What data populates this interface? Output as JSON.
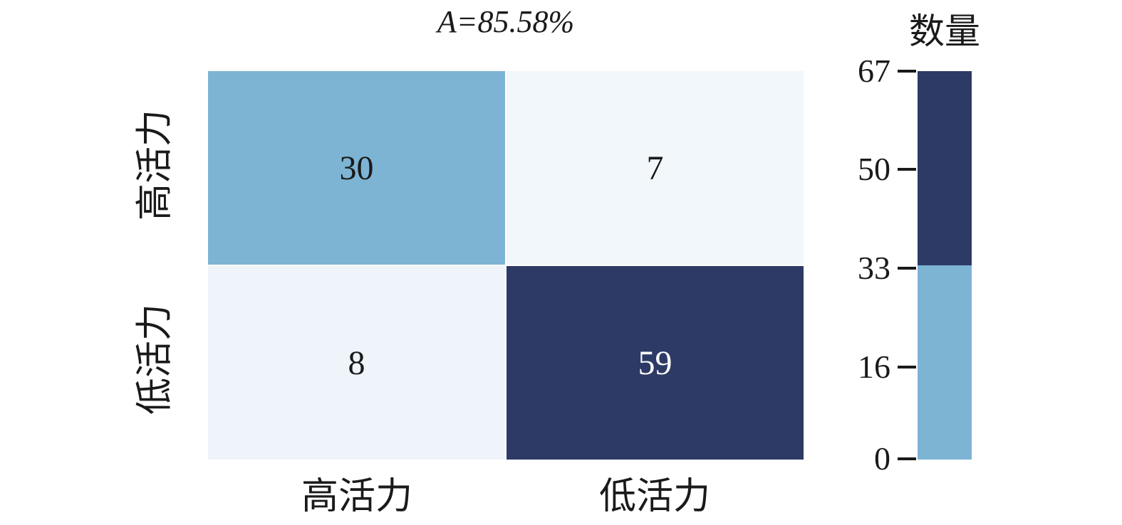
{
  "title": "A=85.58%",
  "axis": {
    "y_labels": [
      "高活力",
      "低活力"
    ],
    "x_labels": [
      "高活力",
      "低活力"
    ]
  },
  "colorbar": {
    "title": "数量",
    "ticks": [
      "67",
      "50",
      "33",
      "16",
      "0"
    ],
    "high_color": "#2d3a65",
    "low_color": "#7db4d4"
  },
  "colors": {
    "background": "#ffffff",
    "cell_top_left": "#7db4d4",
    "cell_top_right": "#f2f7fb",
    "cell_bottom_left": "#eef4fa",
    "cell_bottom_right": "#2d3a65",
    "text_dark": "#1a1a1a",
    "text_light": "#fdfdfd"
  },
  "chart_data": {
    "type": "heatmap",
    "title": "A=85.58%",
    "x_categories": [
      "高活力",
      "低活力"
    ],
    "y_categories": [
      "高活力",
      "低活力"
    ],
    "values": [
      [
        30,
        7
      ],
      [
        8,
        59
      ]
    ],
    "cell_colors": [
      [
        "#7db4d4",
        "#f2f7fb"
      ],
      [
        "#eef4fa",
        "#2d3a65"
      ]
    ],
    "colorbar_label": "数量",
    "colorbar_ticks": [
      67,
      50,
      33,
      16,
      0
    ],
    "value_range": [
      0,
      67
    ],
    "colorbar_position": "right",
    "grid": false,
    "accuracy_annotation": "A=85.58%"
  }
}
